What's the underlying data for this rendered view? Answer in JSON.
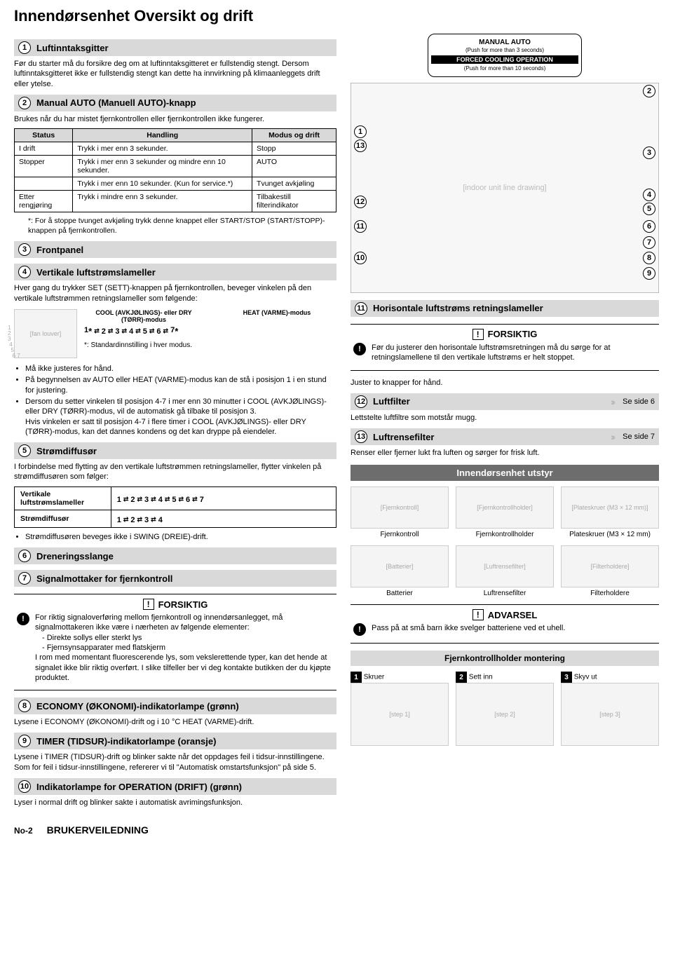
{
  "page_title": "Innendørsenhet Oversikt og drift",
  "sections": {
    "s1": {
      "num": "1",
      "title": "Luftinntaksgitter",
      "body": "Før du starter må du forsikre deg om at luftinntaksgitteret er fullstendig stengt. Dersom luftinntaksgitteret ikke er fullstendig stengt kan dette ha innvirkning på klimaanleggets drift eller ytelse."
    },
    "s2": {
      "num": "2",
      "title": "Manual AUTO (Manuell AUTO)-knapp",
      "intro": "Brukes når du har mistet fjernkontrollen eller fjernkontrollen ikke fungerer."
    },
    "s3": {
      "num": "3",
      "title": "Frontpanel"
    },
    "s4": {
      "num": "4",
      "title": "Vertikale luftstrømslameller",
      "intro": "Hver gang du trykker SET (SETT)-knappen på fjernkontrollen, beveger vinkelen på den vertikale luftstrømmen retningslameller som følgende:"
    },
    "s5": {
      "num": "5",
      "title": "Strømdiffusør",
      "intro": "I forbindelse med flytting av den vertikale luftstrømmen retningslameller, flytter vinkelen på strømdiffusøren som følger:"
    },
    "s6": {
      "num": "6",
      "title": "Dreneringsslange"
    },
    "s7": {
      "num": "7",
      "title": "Signalmottaker for fjernkontroll"
    },
    "s8": {
      "num": "8",
      "title": "ECONOMY (ØKONOMI)-indikatorlampe (grønn)",
      "body": "Lysene i ECONOMY (ØKONOMI)-drift og i 10 °C HEAT (VARME)-drift."
    },
    "s9": {
      "num": "9",
      "title": "TIMER (TIDSUR)-indikatorlampe (oransje)",
      "body": "Lysene i TIMER (TIDSUR)-drift og blinker sakte når det oppdages feil i tidsur-innstillingene.\nSom for feil i tidsur-innstillingene, refererer vi til \"Automatisk omstartsfunksjon\" på side 5."
    },
    "s10": {
      "num": "10",
      "title": "Indikatorlampe for OPERATION (DRIFT) (grønn)",
      "body": "Lyser i normal drift og blinker sakte i automatisk avrimingsfunksjon."
    },
    "s11": {
      "num": "11",
      "title": "Horisontale luftstrøms retningslameller"
    },
    "s12": {
      "num": "12",
      "title": "Luftfilter",
      "seepage": "Se side 6",
      "body": "Lettstelte luftfiltre som motstår mugg."
    },
    "s13": {
      "num": "13",
      "title": "Luftrensefilter",
      "seepage": "Se side 7",
      "body": "Renser eller fjerner lukt fra luften og sørger for frisk luft."
    }
  },
  "table2": {
    "headers": [
      "Status",
      "Handling",
      "Modus og drift"
    ],
    "rows": [
      [
        "I drift",
        "Trykk i mer enn 3 sekunder.",
        "Stopp"
      ],
      [
        "Stopper",
        "Trykk i mer enn 3 sekunder og mindre enn 10 sekunder.",
        "AUTO"
      ],
      [
        "",
        "Trykk i mer enn 10 sekunder. (Kun for service.*)",
        "Tvunget avkjøling"
      ],
      [
        "Etter rengjøring",
        "Trykk i mindre enn 3 sekunder.",
        "Tilbakestill filterindikator"
      ]
    ],
    "footnote": "*: For å stoppe tvunget avkjøling trykk denne knappet eller START/STOP (START/STOPP)-knappen på fjernkontrollen."
  },
  "louver4": {
    "mode_cool": "COOL (AVKJØLINGS)- eller DRY (TØRR)-modus",
    "mode_heat": "HEAT (VARME)-modus",
    "seq": [
      "1",
      "2",
      "3",
      "4",
      "5",
      "6",
      "7"
    ],
    "std_note": "*: Standardinnstilling i hver modus.",
    "bullets": [
      "Må ikke justeres for hånd.",
      "På begynnelsen av AUTO eller HEAT (VARME)-modus kan de stå i posisjon 1 i en stund for justering.",
      "Dersom du setter vinkelen til posisjon 4-7 i mer enn 30 minutter i COOL (AVKJØLINGS)- eller DRY (TØRR)-modus, vil de automatisk gå tilbake til posisjon 3.\nHvis vinkelen er satt til posisjon 4-7 i flere timer i COOL (AVKJØLINGS)- eller DRY (TØRR)-modus, kan det dannes kondens og det kan dryppe på eiendeler."
    ]
  },
  "diffuser5": {
    "rows": [
      {
        "label": "Vertikale luftstrømslameller",
        "vals": [
          "1",
          "2",
          "3",
          "4",
          "5",
          "6",
          "7"
        ]
      },
      {
        "label": "Strømdiffusør",
        "vals": [
          "1",
          "2",
          "3",
          "4"
        ]
      }
    ],
    "note": "Strømdiffusøren beveges ikke i SWING (DREIE)-drift."
  },
  "caution7": {
    "title": "FORSIKTIG",
    "text": "For riktig signaloverføring mellom fjernkontroll og innendørsanlegget, må signalmottakeren ikke være i nærheten av følgende elementer:",
    "items": [
      "- Direkte sollys eller sterkt lys",
      "- Fjernsynsapparater med flatskjerm"
    ],
    "text2": "I rom med momentant fluorescerende lys, som vekslerettende typer, kan det hende at signalet ikke blir riktig overført. I slike tilfeller ber vi deg kontakte butikken der du kjøpte produktet."
  },
  "remote_badge": {
    "l1": "MANUAL AUTO",
    "l2": "(Push for more than 3 seconds)",
    "l3": "FORCED COOLING OPERATION",
    "l4": "(Push for more than 10 seconds)"
  },
  "caution11": {
    "title": "FORSIKTIG",
    "text": "Før du justerer den horisontale luftstrømsretningen må du sørge for at retningslamellene til den vertikale luftstrøms er helt stoppet.",
    "after": "Juster to knapper for hånd."
  },
  "equipment": {
    "title": "Innendørsenhet utstyr",
    "items": [
      {
        "label": "Fjernkontroll"
      },
      {
        "label": "Fjernkontrollholder"
      },
      {
        "label": "Plateskruer (M3 × 12 mm)"
      },
      {
        "label": "Batterier"
      },
      {
        "label": "Luftrensefilter"
      },
      {
        "label": "Filterholdere"
      }
    ]
  },
  "warning_equip": {
    "title": "ADVARSEL",
    "text": "Pass på at små barn ikke svelger batteriene ved et uhell."
  },
  "mounting": {
    "title": "Fjernkontrollholder montering",
    "steps": [
      {
        "n": "1",
        "cap": "Skruer"
      },
      {
        "n": "2",
        "cap": "Sett inn"
      },
      {
        "n": "3",
        "cap": "Skyv ut"
      }
    ]
  },
  "footer": {
    "page": "No-2",
    "title": "BRUKERVEILEDNING"
  },
  "colors": {
    "header_bg": "#d9d9d9",
    "equip_title_bg": "#6d6d6d",
    "chevron": "#bbbbbb"
  }
}
